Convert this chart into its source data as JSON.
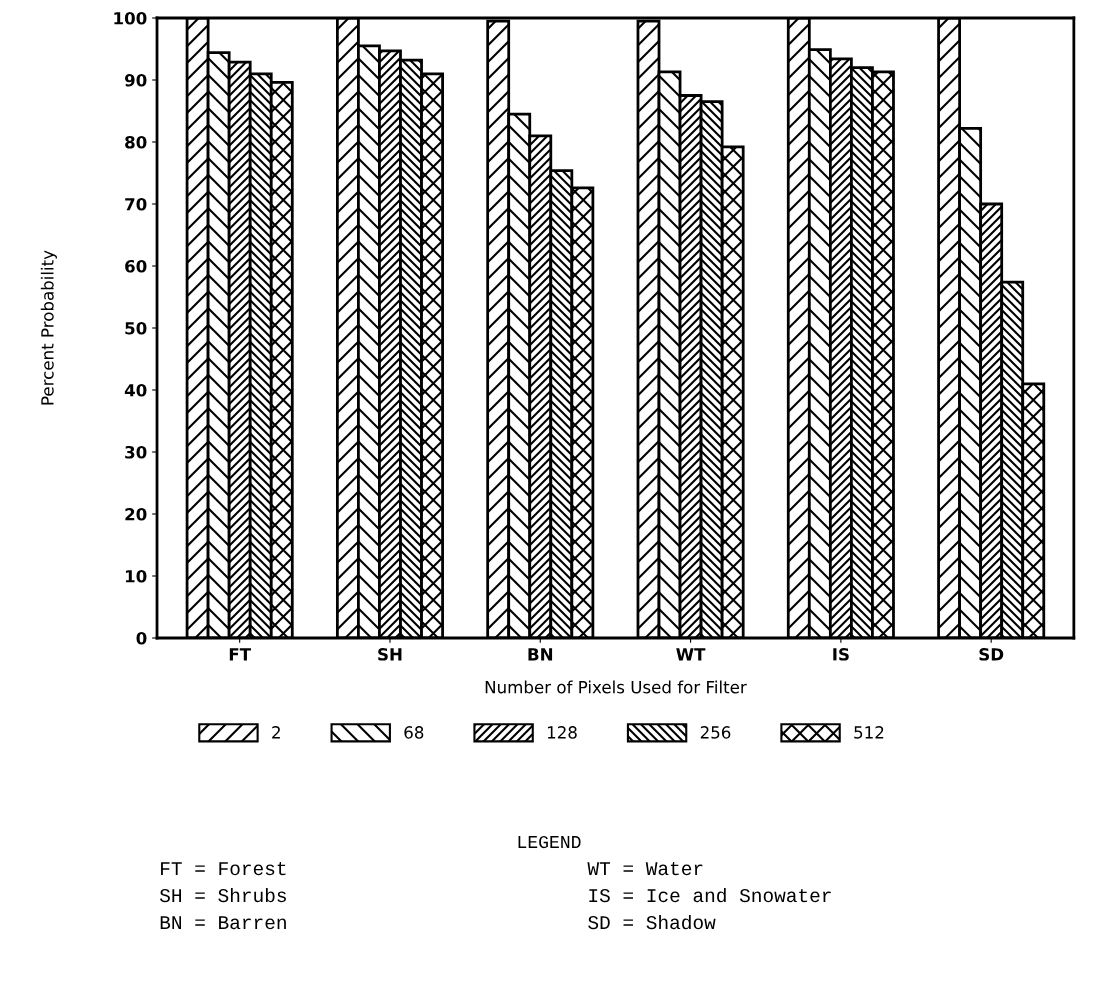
{
  "chart_data": {
    "type": "bar",
    "xlabel": "Number of Pixels Used for Filter",
    "ylabel": "Percent Probability",
    "categories": [
      "FT",
      "SH",
      "BN",
      "WT",
      "IS",
      "SD"
    ],
    "series": [
      {
        "name": "2",
        "color": "#000000",
        "values": [
          100,
          100,
          99.5,
          99.5,
          100,
          100
        ]
      },
      {
        "name": "68",
        "color": "#000000",
        "values": [
          94.4,
          95.5,
          84.5,
          91.3,
          94.9,
          82.2
        ]
      },
      {
        "name": "128",
        "color": "#000000",
        "values": [
          92.9,
          94.7,
          81.0,
          87.5,
          93.4,
          70.0
        ]
      },
      {
        "name": "256",
        "color": "#000000",
        "values": [
          91.0,
          93.2,
          75.4,
          86.5,
          92.0,
          57.4
        ]
      },
      {
        "name": "512",
        "color": "#000000",
        "values": [
          89.6,
          91.0,
          72.6,
          79.2,
          91.3,
          41.0
        ]
      }
    ],
    "ylim": [
      0,
      100
    ],
    "yticks": [
      0,
      10,
      20,
      30,
      40,
      50,
      60,
      70,
      80,
      90,
      100
    ],
    "grid": false,
    "legend": "bottom",
    "annotations": [
      "LEGEND",
      "FT = Forest",
      "SH = Shrubs",
      "BN = Barren",
      "WT = Water",
      "IS = Ice and Snowater",
      "SD = Shadow"
    ]
  }
}
